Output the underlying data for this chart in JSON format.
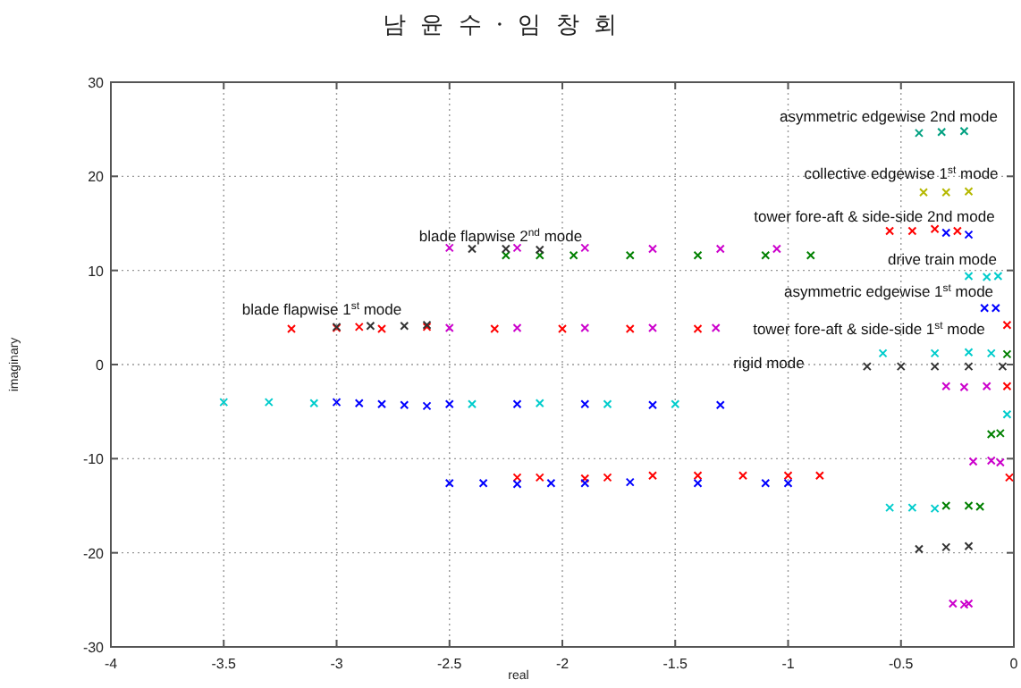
{
  "chart_data": {
    "type": "scatter",
    "title": "남 윤 수 · 임 창 회",
    "xlabel": "real",
    "ylabel": "imaginary",
    "marker": "cross",
    "grid": true,
    "xlim": [
      -4,
      0
    ],
    "ylim": [
      -30,
      30
    ],
    "xticks": [
      -4,
      -3.5,
      -3,
      -2.5,
      -2,
      -1.5,
      -1,
      -0.5,
      0
    ],
    "yticks": [
      -30,
      -20,
      -10,
      0,
      10,
      20,
      30
    ],
    "series": [
      {
        "color": "#ff0000",
        "x": [
          -3.2,
          -3.0,
          -2.9,
          -2.8,
          -2.6,
          -2.3,
          -2.0,
          -1.7,
          -1.4,
          -2.2,
          -2.1,
          -1.9,
          -1.8,
          -1.6,
          -1.4,
          -1.2,
          -1.0,
          -0.86,
          -0.55,
          -0.45,
          -0.35,
          -0.25,
          -0.03,
          -0.02,
          -0.03
        ],
        "values": [
          3.8,
          3.9,
          4.0,
          3.8,
          4.0,
          3.8,
          3.8,
          3.8,
          3.8,
          -12,
          -12,
          -12.1,
          -12,
          -11.8,
          -11.8,
          -11.8,
          -11.8,
          -11.8,
          14.2,
          14.2,
          14.4,
          14.2,
          -2.3,
          -12,
          4.2
        ]
      },
      {
        "color": "#0000ff",
        "x": [
          -3.0,
          -2.9,
          -2.8,
          -2.7,
          -2.6,
          -2.5,
          -2.2,
          -1.9,
          -1.6,
          -1.3,
          -2.5,
          -2.35,
          -2.2,
          -2.05,
          -1.9,
          -1.7,
          -1.4,
          -1.1,
          -1.0,
          -0.3,
          -0.2,
          -0.13,
          -0.08
        ],
        "values": [
          -4.0,
          -4.1,
          -4.2,
          -4.3,
          -4.4,
          -4.2,
          -4.2,
          -4.2,
          -4.3,
          -4.3,
          -12.6,
          -12.6,
          -12.7,
          -12.6,
          -12.6,
          -12.5,
          -12.6,
          -12.6,
          -12.6,
          14.0,
          13.8,
          6.0,
          6.0
        ]
      },
      {
        "color": "#00cccc",
        "x": [
          -3.5,
          -3.3,
          -3.1,
          -2.4,
          -2.1,
          -1.8,
          -1.5,
          -0.2,
          -0.12,
          -0.07,
          -0.58,
          -0.35,
          -0.2,
          -0.1,
          -0.03,
          -0.55,
          -0.45,
          -0.35
        ],
        "values": [
          -4,
          -4,
          -4.1,
          -4.2,
          -4.1,
          -4.2,
          -4.2,
          9.4,
          9.3,
          9.4,
          1.2,
          1.2,
          1.3,
          1.2,
          -5.3,
          -15.2,
          -15.2,
          -15.3
        ]
      },
      {
        "color": "#008000",
        "x": [
          -2.25,
          -2.1,
          -1.95,
          -1.7,
          -1.4,
          -1.1,
          -0.9,
          -0.03,
          -0.1,
          -0.06,
          -0.3,
          -0.2,
          -0.15
        ],
        "values": [
          11.6,
          11.6,
          11.6,
          11.6,
          11.6,
          11.6,
          11.6,
          1.1,
          -7.4,
          -7.3,
          -15,
          -15,
          -15.1
        ]
      },
      {
        "color": "#cc00cc",
        "x": [
          -2.5,
          -2.2,
          -1.9,
          -1.6,
          -1.32,
          -2.5,
          -2.2,
          -1.9,
          -1.6,
          -1.3,
          -1.05,
          -0.3,
          -0.22,
          -0.12,
          -0.18,
          -0.1,
          -0.06,
          -0.27,
          -0.22,
          -0.2
        ],
        "values": [
          3.9,
          3.9,
          3.9,
          3.9,
          3.9,
          12.4,
          12.4,
          12.4,
          12.3,
          12.3,
          12.3,
          -2.3,
          -2.4,
          -2.3,
          -10.3,
          -10.2,
          -10.4,
          -25.4,
          -25.5,
          -25.4
        ]
      },
      {
        "color": "#333333",
        "x": [
          -3.0,
          -2.85,
          -2.7,
          -2.6,
          -2.4,
          -2.25,
          -2.1,
          -0.65,
          -0.5,
          -0.35,
          -0.2,
          -0.05,
          -0.42,
          -0.3,
          -0.2
        ],
        "values": [
          4.0,
          4.1,
          4.1,
          4.2,
          12.3,
          12.3,
          12.2,
          -0.2,
          -0.2,
          -0.2,
          -0.2,
          -0.2,
          -19.6,
          -19.4,
          -19.3
        ]
      },
      {
        "color": "#b5b800",
        "x": [
          -0.4,
          -0.3,
          -0.2
        ],
        "values": [
          18.3,
          18.3,
          18.4
        ]
      },
      {
        "color": "#00a080",
        "x": [
          -0.42,
          -0.32,
          -0.22
        ],
        "values": [
          24.6,
          24.7,
          24.8
        ]
      }
    ],
    "annotations": [
      "blade flapwise 1$^{st}$ mode",
      "blade flapwise 2$^{nd}$ mode",
      "asymmetric edgewise 2nd mode",
      "collective edgewise 1$^{st}$ mode",
      "tower fore-aft & side-side 2nd mode",
      "drive train mode",
      "asymmetric edgewise 1$^{st}$ mode",
      "tower fore-aft & side-side 1$^{st}$ mode",
      "rigid mode"
    ]
  }
}
